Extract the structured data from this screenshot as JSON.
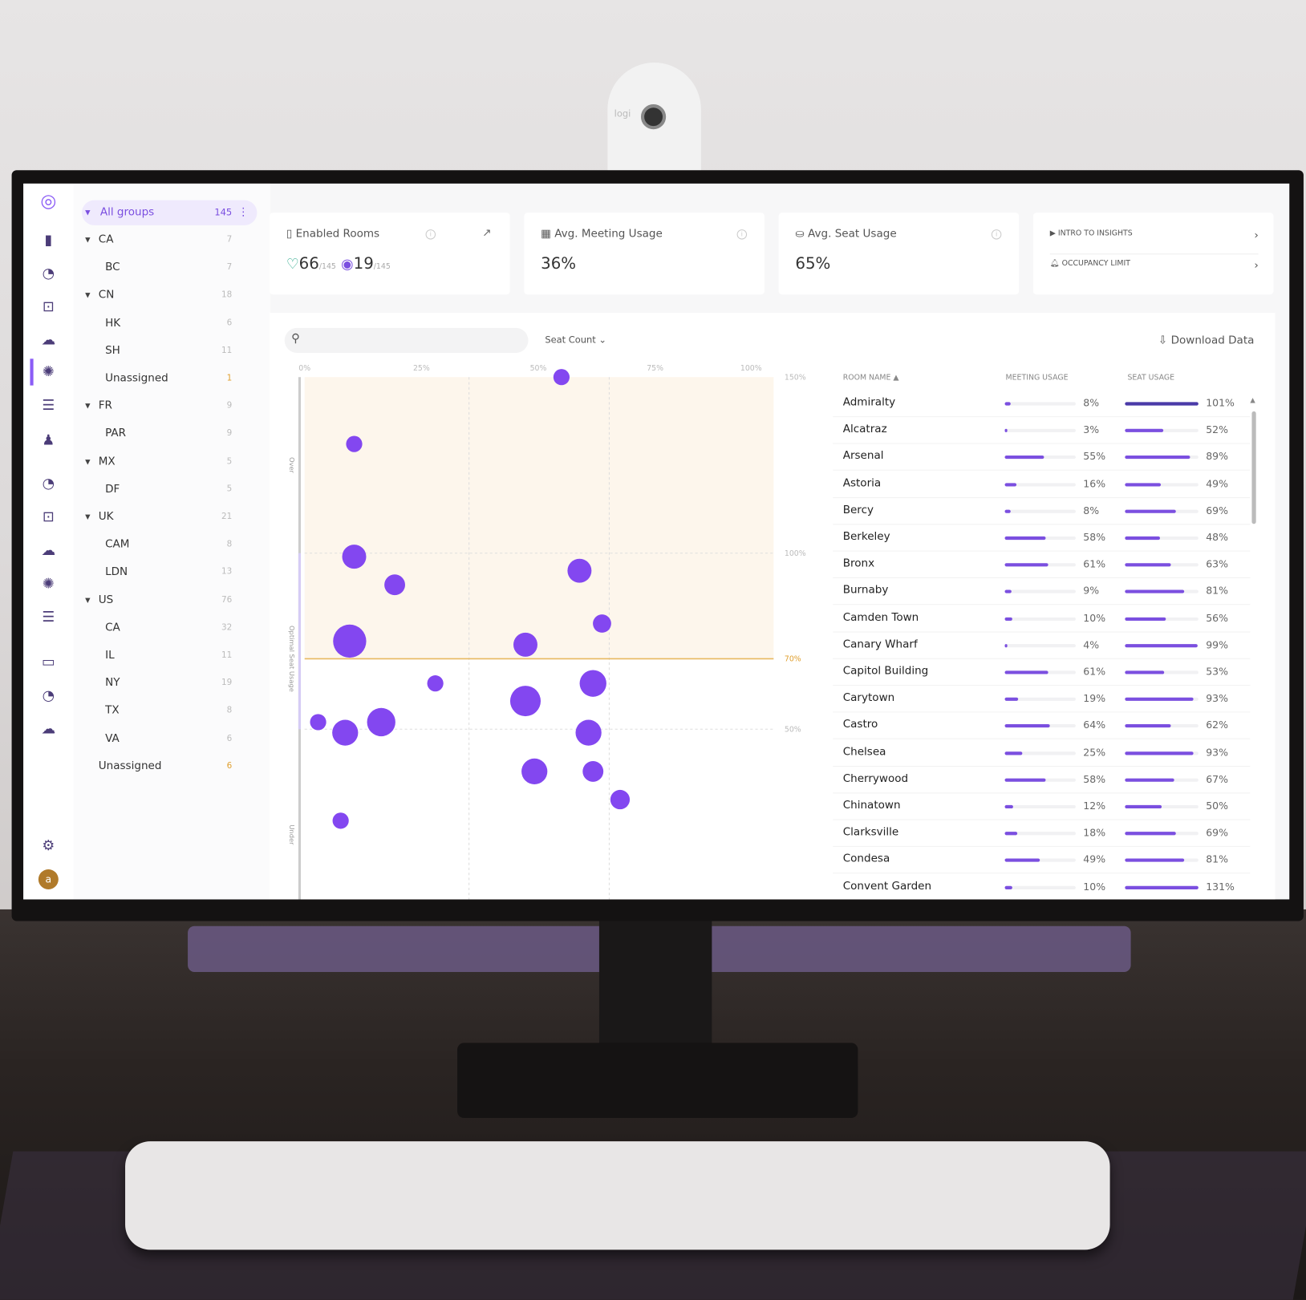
{
  "colors": {
    "accent": "#7b4fe0",
    "dark_bar": "#4a3aa8",
    "optimal_band": "#fdf6ec",
    "threshold_line": "#e7b860",
    "bubble": "#8347f0"
  },
  "rail": {
    "icons": [
      "logo-icon",
      "device-icon",
      "dashboard-icon",
      "alert-icon",
      "cloud-icon",
      "insights-icon",
      "sliders-icon",
      "user-device-icon",
      "dashboard-icon",
      "alert-icon",
      "cloud-icon",
      "insights-icon",
      "sliders-icon",
      "laptop-icon",
      "dashboard-icon",
      "cloud-icon",
      "settings-icon",
      "avatar"
    ],
    "avatar_letter": "a"
  },
  "groups": {
    "all": {
      "label": "All groups",
      "count": "145"
    },
    "items": [
      {
        "label": "CA",
        "count": "7",
        "level": 0
      },
      {
        "label": "BC",
        "count": "7",
        "level": 1
      },
      {
        "label": "CN",
        "count": "18",
        "level": 0
      },
      {
        "label": "HK",
        "count": "6",
        "level": 1
      },
      {
        "label": "SH",
        "count": "11",
        "level": 1
      },
      {
        "label": "Unassigned",
        "count": "1",
        "level": 1,
        "warn": true
      },
      {
        "label": "FR",
        "count": "9",
        "level": 0
      },
      {
        "label": "PAR",
        "count": "9",
        "level": 1
      },
      {
        "label": "MX",
        "count": "5",
        "level": 0
      },
      {
        "label": "DF",
        "count": "5",
        "level": 1
      },
      {
        "label": "UK",
        "count": "21",
        "level": 0
      },
      {
        "label": "CAM",
        "count": "8",
        "level": 1
      },
      {
        "label": "LDN",
        "count": "13",
        "level": 1
      },
      {
        "label": "US",
        "count": "76",
        "level": 0
      },
      {
        "label": "CA",
        "count": "32",
        "level": 1
      },
      {
        "label": "IL",
        "count": "11",
        "level": 1
      },
      {
        "label": "NY",
        "count": "19",
        "level": 1
      },
      {
        "label": "TX",
        "count": "8",
        "level": 1
      },
      {
        "label": "VA",
        "count": "6",
        "level": 1
      },
      {
        "label": "Unassigned",
        "count": "6",
        "level": 0,
        "warn": true
      }
    ]
  },
  "cards": {
    "enabled": {
      "title": "Enabled Rooms",
      "healthy": "66",
      "healthy_total": "/145",
      "active": "19",
      "active_total": "/145"
    },
    "meeting": {
      "title": "Avg. Meeting Usage",
      "value": "36%"
    },
    "seat": {
      "title": "Avg. Seat Usage",
      "value": "65%"
    },
    "links": [
      {
        "label": "INTRO TO INSIGHTS"
      },
      {
        "label": "OCCUPANCY LIMIT"
      }
    ]
  },
  "toolbar": {
    "search_placeholder": "",
    "sort_label": "Seat Count",
    "download_label": "Download Data"
  },
  "chart_data": {
    "type": "scatter",
    "size_by": "Seat Count",
    "x_ticks": [
      "0%",
      "25%",
      "50%",
      "75%",
      "100%"
    ],
    "xlim": [
      0,
      100
    ],
    "y_ticks": [
      "150%",
      "100%",
      "70%",
      "50%"
    ],
    "ylim": [
      2,
      150
    ],
    "bands": {
      "over": "Over",
      "optimal": "Optimal Seat Usage",
      "under": "Under"
    },
    "points": [
      {
        "x": 57,
        "y": 150,
        "s": 1
      },
      {
        "x": 11,
        "y": 131,
        "s": 1
      },
      {
        "x": 11,
        "y": 99,
        "s": 4
      },
      {
        "x": 20,
        "y": 91,
        "s": 2.5
      },
      {
        "x": 61,
        "y": 95,
        "s": 4
      },
      {
        "x": 66,
        "y": 80,
        "s": 1.6
      },
      {
        "x": 10,
        "y": 75,
        "s": 10
      },
      {
        "x": 49,
        "y": 74,
        "s": 4
      },
      {
        "x": 29,
        "y": 63,
        "s": 1
      },
      {
        "x": 64,
        "y": 63,
        "s": 5.5
      },
      {
        "x": 49,
        "y": 58,
        "s": 8
      },
      {
        "x": 3,
        "y": 52,
        "s": 1
      },
      {
        "x": 17,
        "y": 52,
        "s": 6.5
      },
      {
        "x": 9,
        "y": 49,
        "s": 5
      },
      {
        "x": 63,
        "y": 49,
        "s": 5
      },
      {
        "x": 51,
        "y": 38,
        "s": 5
      },
      {
        "x": 64,
        "y": 38,
        "s": 2.5
      },
      {
        "x": 70,
        "y": 30,
        "s": 2
      },
      {
        "x": 8,
        "y": 24,
        "s": 1
      }
    ]
  },
  "table": {
    "columns": [
      "ROOM NAME",
      "MEETING USAGE",
      "SEAT USAGE"
    ],
    "rows": [
      {
        "name": "Admiralty",
        "meeting": 8,
        "meeting_label": "8%",
        "seat": 101,
        "seat_label": "101%"
      },
      {
        "name": "Alcatraz",
        "meeting": 3,
        "meeting_label": "3%",
        "seat": 52,
        "seat_label": "52%"
      },
      {
        "name": "Arsenal",
        "meeting": 55,
        "meeting_label": "55%",
        "seat": 89,
        "seat_label": "89%"
      },
      {
        "name": "Astoria",
        "meeting": 16,
        "meeting_label": "16%",
        "seat": 49,
        "seat_label": "49%"
      },
      {
        "name": "Bercy",
        "meeting": 8,
        "meeting_label": "8%",
        "seat": 69,
        "seat_label": "69%"
      },
      {
        "name": "Berkeley",
        "meeting": 58,
        "meeting_label": "58%",
        "seat": 48,
        "seat_label": "48%"
      },
      {
        "name": "Bronx",
        "meeting": 61,
        "meeting_label": "61%",
        "seat": 63,
        "seat_label": "63%"
      },
      {
        "name": "Burnaby",
        "meeting": 9,
        "meeting_label": "9%",
        "seat": 81,
        "seat_label": "81%"
      },
      {
        "name": "Camden Town",
        "meeting": 10,
        "meeting_label": "10%",
        "seat": 56,
        "seat_label": "56%"
      },
      {
        "name": "Canary Wharf",
        "meeting": 4,
        "meeting_label": "4%",
        "seat": 99,
        "seat_label": "99%"
      },
      {
        "name": "Capitol Building",
        "meeting": 61,
        "meeting_label": "61%",
        "seat": 53,
        "seat_label": "53%"
      },
      {
        "name": "Carytown",
        "meeting": 19,
        "meeting_label": "19%",
        "seat": 93,
        "seat_label": "93%"
      },
      {
        "name": "Castro",
        "meeting": 64,
        "meeting_label": "64%",
        "seat": 62,
        "seat_label": "62%"
      },
      {
        "name": "Chelsea",
        "meeting": 25,
        "meeting_label": "25%",
        "seat": 93,
        "seat_label": "93%"
      },
      {
        "name": "Cherrywood",
        "meeting": 58,
        "meeting_label": "58%",
        "seat": 67,
        "seat_label": "67%"
      },
      {
        "name": "Chinatown",
        "meeting": 12,
        "meeting_label": "12%",
        "seat": 50,
        "seat_label": "50%"
      },
      {
        "name": "Clarksville",
        "meeting": 18,
        "meeting_label": "18%",
        "seat": 69,
        "seat_label": "69%"
      },
      {
        "name": "Condesa",
        "meeting": 49,
        "meeting_label": "49%",
        "seat": 81,
        "seat_label": "81%"
      },
      {
        "name": "Convent Garden",
        "meeting": 10,
        "meeting_label": "10%",
        "seat": 131,
        "seat_label": "131%"
      }
    ]
  },
  "webcam": {
    "brand": "logi"
  }
}
